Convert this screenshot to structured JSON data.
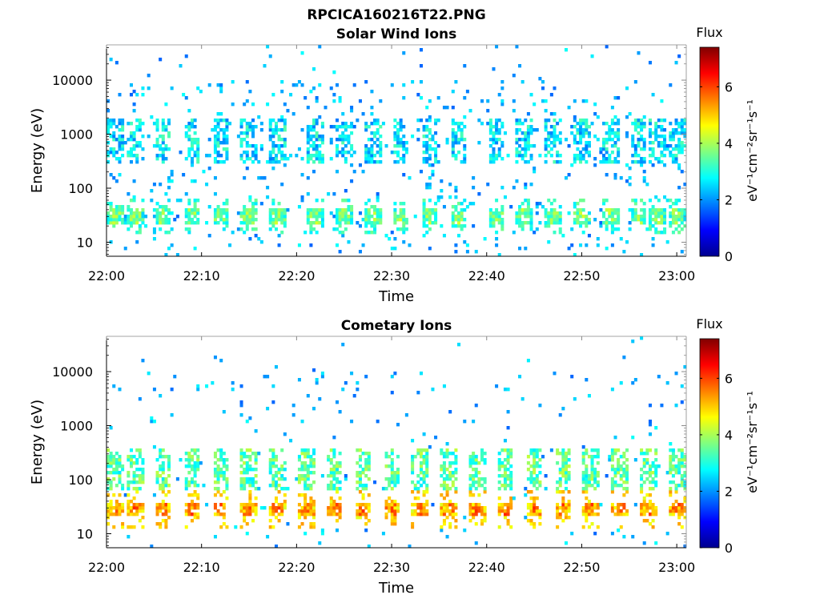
{
  "figure": {
    "title": "RPCICA160216T22.PNG"
  },
  "chart_data": [
    {
      "type": "heatmap",
      "title": "Solar Wind Ions",
      "xlabel": "Time",
      "ylabel": "Energy (eV)",
      "x_scale": "time",
      "x_ticks": [
        "22:00",
        "22:10",
        "22:20",
        "22:30",
        "22:40",
        "22:50",
        "23:00"
      ],
      "xlim": [
        "22:00",
        "23:01"
      ],
      "y_scale": "log",
      "y_ticks": [
        10,
        100,
        1000,
        10000
      ],
      "y_tick_labels": [
        "10",
        "100",
        "1000",
        "10000"
      ],
      "ylim": [
        5.5,
        45000
      ],
      "colorbar": {
        "label": "Flux",
        "unit_label": "eV⁻¹cm⁻²sr⁻¹s⁻¹",
        "ticks": [
          0,
          2,
          4,
          6
        ],
        "range": [
          0,
          7.4
        ],
        "colormap": "jet"
      },
      "bursts": {
        "times": [
          "22:01",
          "22:03",
          "22:06",
          "22:09",
          "22:12",
          "22:15",
          "22:18",
          "22:22",
          "22:25",
          "22:28",
          "22:31",
          "22:34",
          "22:37",
          "22:41",
          "22:44",
          "22:47",
          "22:50",
          "22:53",
          "22:56",
          "22:58",
          "23:00"
        ],
        "low_band_energy_eV": 30,
        "low_band_flux": 3.8,
        "high_band_energy_eV": [
          300,
          2000
        ],
        "high_band_flux": 2.6,
        "background_flux": 2.0,
        "sparse_density": 0.05
      }
    },
    {
      "type": "heatmap",
      "title": "Cometary Ions",
      "xlabel": "Time",
      "ylabel": "Energy (eV)",
      "x_scale": "time",
      "x_ticks": [
        "22:00",
        "22:10",
        "22:20",
        "22:30",
        "22:40",
        "22:50",
        "23:00"
      ],
      "xlim": [
        "22:00",
        "23:01"
      ],
      "y_scale": "log",
      "y_ticks": [
        10,
        100,
        1000,
        10000
      ],
      "y_tick_labels": [
        "10",
        "100",
        "1000",
        "10000"
      ],
      "ylim": [
        5.5,
        45000
      ],
      "colorbar": {
        "label": "Flux",
        "unit_label": "eV⁻¹cm⁻²sr⁻¹s⁻¹",
        "ticks": [
          0,
          2,
          4,
          6
        ],
        "range": [
          0,
          7.4
        ],
        "colormap": "jet"
      },
      "bursts": {
        "times": [
          "22:01",
          "22:03",
          "22:06",
          "22:09",
          "22:12",
          "22:15",
          "22:18",
          "22:21",
          "22:24",
          "22:27",
          "22:30",
          "22:33",
          "22:36",
          "22:39",
          "22:42",
          "22:45",
          "22:48",
          "22:51",
          "22:54",
          "22:57",
          "23:00"
        ],
        "low_band_energy_eV": 28,
        "low_band_flux": 5.6,
        "high_band_energy_eV": [
          60,
          400
        ],
        "high_band_flux": 3.4,
        "background_flux": 2.0,
        "sparse_density": 0.02
      }
    }
  ]
}
